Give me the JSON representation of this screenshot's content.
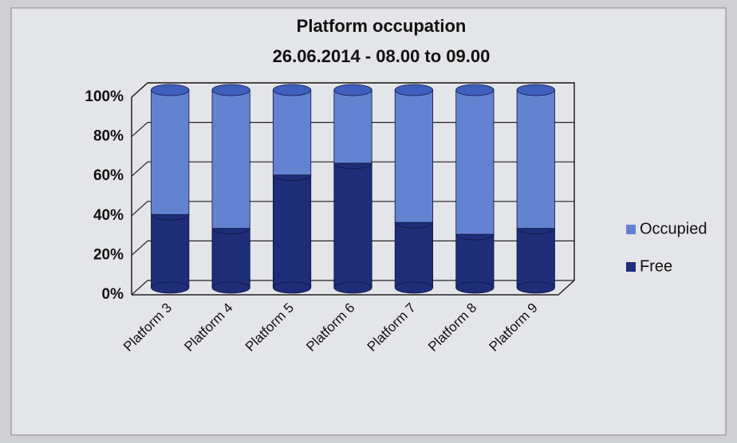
{
  "chart_data": {
    "type": "stacked-bar",
    "title": "Platform occupation",
    "subtitle": "26.06.2014 - 08.00 to 09.00",
    "categories": [
      "Platform 3",
      "Platform 4",
      "Platform 5",
      "Platform 6",
      "Platform 7",
      "Platform 8",
      "Platform 9"
    ],
    "series": [
      {
        "name": "Free",
        "color": "#1e2d78",
        "values": [
          37,
          30,
          57,
          63,
          33,
          27,
          30
        ]
      },
      {
        "name": "Occupied",
        "color": "#6482d2",
        "values": [
          63,
          70,
          43,
          37,
          67,
          73,
          70
        ]
      }
    ],
    "ylim": [
      0,
      100
    ],
    "yticks": [
      {
        "value": 0,
        "label": "0%"
      },
      {
        "value": 20,
        "label": "20%"
      },
      {
        "value": 40,
        "label": "40%"
      },
      {
        "value": 60,
        "label": "60%"
      },
      {
        "value": 80,
        "label": "80%"
      },
      {
        "value": 100,
        "label": "100%"
      }
    ],
    "grid": true,
    "legend": "right"
  }
}
